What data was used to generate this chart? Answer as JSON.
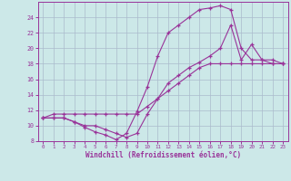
{
  "xlabel": "Windchill (Refroidissement éolien,°C)",
  "bg_color": "#cce8e8",
  "grid_color": "#aabbcc",
  "line_color": "#993399",
  "xlim": [
    -0.5,
    23.5
  ],
  "ylim": [
    8,
    26
  ],
  "xticks": [
    0,
    1,
    2,
    3,
    4,
    5,
    6,
    7,
    8,
    9,
    10,
    11,
    12,
    13,
    14,
    15,
    16,
    17,
    18,
    19,
    20,
    21,
    22,
    23
  ],
  "yticks": [
    8,
    10,
    12,
    14,
    16,
    18,
    20,
    22,
    24
  ],
  "line1_x": [
    0,
    1,
    2,
    3,
    4,
    5,
    6,
    7,
    8,
    9,
    10,
    11,
    12,
    13,
    14,
    15,
    16,
    17,
    18,
    19,
    20,
    21,
    22,
    23
  ],
  "line1_y": [
    11,
    11,
    11,
    10.5,
    9.8,
    9.2,
    8.8,
    8.2,
    9.0,
    11.8,
    15.0,
    19.0,
    22.0,
    23.0,
    24.0,
    25.0,
    25.2,
    25.5,
    25.0,
    20.0,
    18.5,
    18.5,
    18.0,
    18.0
  ],
  "line2_x": [
    0,
    1,
    2,
    3,
    4,
    5,
    6,
    7,
    8,
    9,
    10,
    11,
    12,
    13,
    14,
    15,
    16,
    17,
    18,
    19,
    20,
    21,
    22,
    23
  ],
  "line2_y": [
    11,
    11,
    11,
    10.5,
    10.0,
    10.0,
    9.5,
    9.0,
    8.5,
    9.0,
    11.5,
    13.5,
    15.5,
    16.5,
    17.5,
    18.2,
    19.0,
    20.0,
    23.0,
    18.5,
    20.5,
    18.5,
    18.5,
    18.0
  ],
  "line3_x": [
    0,
    1,
    2,
    3,
    4,
    5,
    6,
    7,
    8,
    9,
    10,
    11,
    12,
    13,
    14,
    15,
    16,
    17,
    18,
    19,
    20,
    21,
    22,
    23
  ],
  "line3_y": [
    11,
    11.5,
    11.5,
    11.5,
    11.5,
    11.5,
    11.5,
    11.5,
    11.5,
    11.5,
    12.5,
    13.5,
    14.5,
    15.5,
    16.5,
    17.5,
    18.0,
    18.0,
    18.0,
    18.0,
    18.0,
    18.0,
    18.0,
    18.0
  ]
}
